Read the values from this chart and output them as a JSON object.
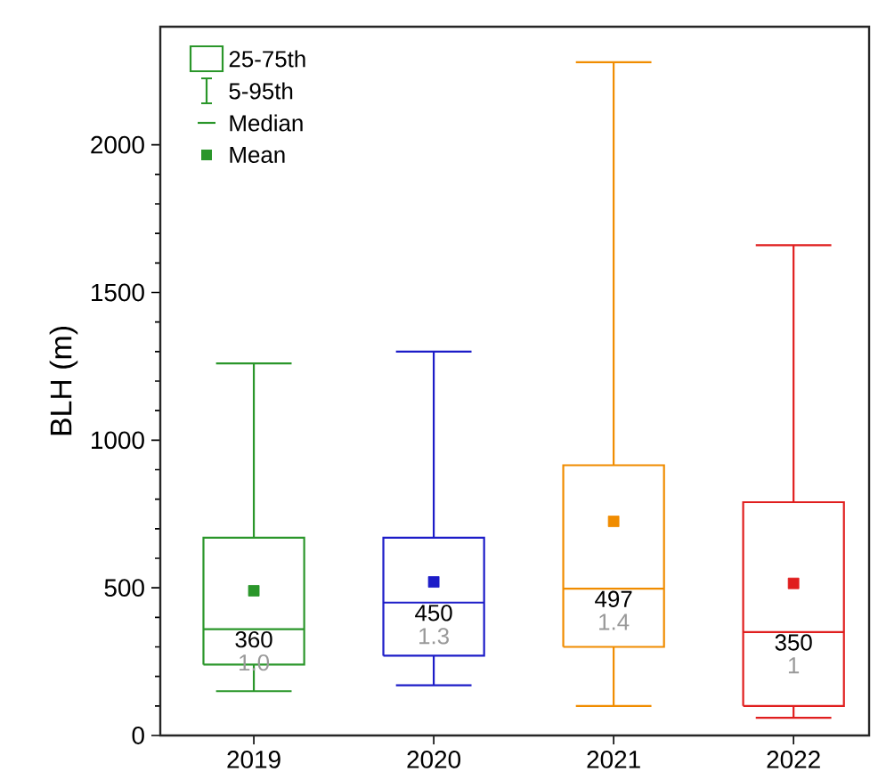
{
  "chart_data": {
    "type": "box",
    "ylabel": "BLH (m)",
    "categories": [
      "2019",
      "2020",
      "2021",
      "2022"
    ],
    "colors": [
      "#2a962a",
      "#1c1cc8",
      "#f08c00",
      "#e01e1e"
    ],
    "boxes": [
      {
        "low": 150,
        "q1": 240,
        "median": 360,
        "q3": 670,
        "high": 1260,
        "mean": 490
      },
      {
        "low": 170,
        "q1": 270,
        "median": 450,
        "q3": 670,
        "high": 1300,
        "mean": 520
      },
      {
        "low": 100,
        "q1": 300,
        "median": 497,
        "q3": 915,
        "high": 2280,
        "mean": 725
      },
      {
        "low": 60,
        "q1": 100,
        "median": 350,
        "q3": 790,
        "high": 1660,
        "mean": 515
      }
    ],
    "ylim": [
      0,
      2400
    ],
    "yticks": [
      0,
      500,
      1000,
      1500,
      2000
    ],
    "marker": "square",
    "annotations": [
      "25-75th",
      "5-95th",
      "Median",
      "Mean",
      "1.0",
      "1.3",
      "1.4",
      "1",
      {
        "text": "360",
        "x": "2019",
        "y": 360
      },
      {
        "text": "450",
        "x": "2020",
        "y": 450
      },
      {
        "text": "497",
        "x": "2021",
        "y": 497
      },
      {
        "text": "350",
        "x": "2022",
        "y": 350
      }
    ]
  }
}
